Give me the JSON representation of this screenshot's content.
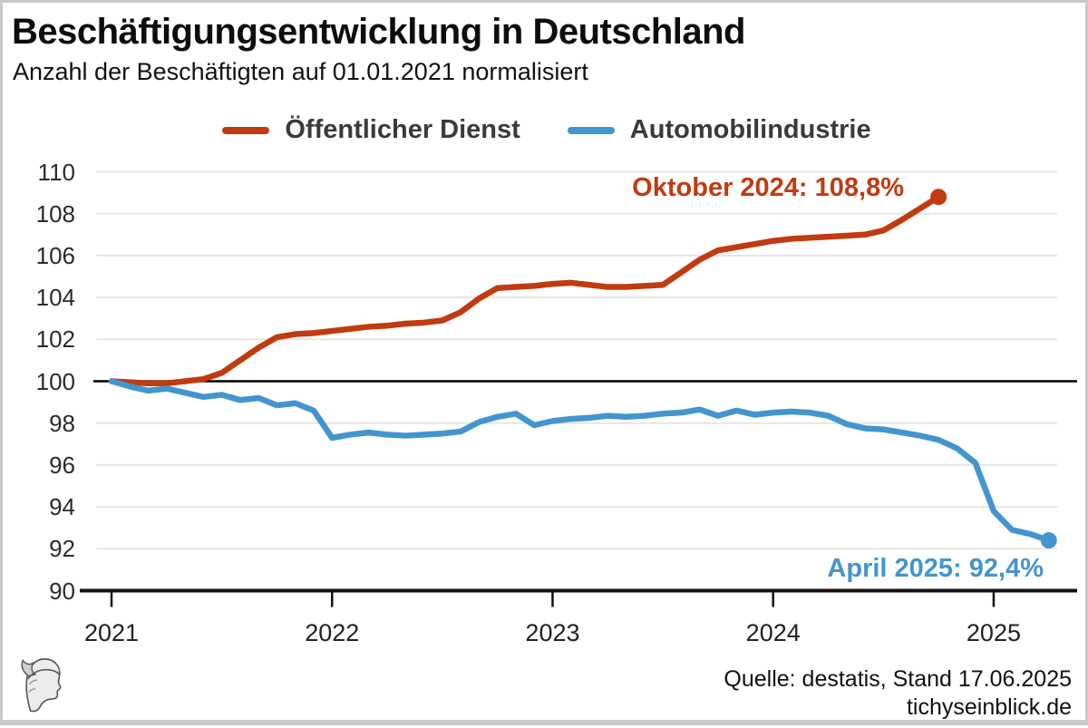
{
  "header": {
    "title": "Beschäftigungsentwicklung in Deutschland",
    "subtitle": "Anzahl der Beschäftigten auf 01.01.2021 normalisiert"
  },
  "legend": {
    "items": [
      {
        "label": "Öffentlicher Dienst",
        "color": "#c23a10"
      },
      {
        "label": "Automobilindustrie",
        "color": "#4295ce"
      }
    ]
  },
  "annotations": {
    "red_label": "Oktober 2024: 108,8%",
    "blue_label": "April 2025: 92,4%"
  },
  "footer": {
    "source_line": "Quelle: destatis, Stand 17.06.2025",
    "site": "tichyseinblick.de",
    "logo": "tichys-einblick-mercury-head"
  },
  "colors": {
    "red": "#c23a10",
    "blue": "#4295ce",
    "grid": "#e5e5e5",
    "baseline": "#000000",
    "axis": "#111111",
    "legend_text": "#3a3a3a",
    "frame_border": "#c9c9c9"
  },
  "chart_data": {
    "type": "line",
    "title": "Beschäftigungsentwicklung in Deutschland",
    "subtitle": "Anzahl der Beschäftigten auf 01.01.2021 normalisiert",
    "x_axis": {
      "start": "2021-01",
      "interval": "monthly",
      "tick_labels": [
        "2021",
        "2022",
        "2023",
        "2024",
        "2025"
      ]
    },
    "y_axis": {
      "min": 90,
      "max": 110,
      "tick_step": 2,
      "tick_labels": [
        110,
        108,
        106,
        104,
        102,
        100,
        98,
        96,
        94,
        92,
        90
      ],
      "baseline_value": 100,
      "grid": true
    },
    "series": [
      {
        "name": "Öffentlicher Dienst",
        "color": "#c23a10",
        "start_month_index": 0,
        "end_point_label": "Oktober 2024: 108,8%",
        "end_value": 108.8,
        "values": [
          100.0,
          99.95,
          99.9,
          99.9,
          100.0,
          100.1,
          100.4,
          101.0,
          101.6,
          102.1,
          102.25,
          102.3,
          102.4,
          102.5,
          102.6,
          102.65,
          102.75,
          102.8,
          102.9,
          103.3,
          103.95,
          104.45,
          104.5,
          104.55,
          104.65,
          104.7,
          104.6,
          104.5,
          104.5,
          104.55,
          104.6,
          105.2,
          105.8,
          106.25,
          106.4,
          106.55,
          106.7,
          106.8,
          106.85,
          106.9,
          106.95,
          107.0,
          107.2,
          107.7,
          108.25,
          108.8
        ]
      },
      {
        "name": "Automobilindustrie",
        "color": "#4295ce",
        "start_month_index": 0,
        "end_point_label": "April 2025: 92,4%",
        "end_value": 92.4,
        "values": [
          100.0,
          99.75,
          99.55,
          99.65,
          99.45,
          99.25,
          99.35,
          99.1,
          99.2,
          98.85,
          98.95,
          98.6,
          97.3,
          97.45,
          97.55,
          97.45,
          97.4,
          97.45,
          97.5,
          97.6,
          98.05,
          98.3,
          98.45,
          97.9,
          98.1,
          98.2,
          98.25,
          98.35,
          98.3,
          98.35,
          98.45,
          98.5,
          98.65,
          98.35,
          98.6,
          98.4,
          98.5,
          98.55,
          98.5,
          98.35,
          97.95,
          97.75,
          97.7,
          97.55,
          97.4,
          97.2,
          96.8,
          96.1,
          93.8,
          92.9,
          92.7,
          92.4
        ]
      }
    ],
    "legend_position": "top-center"
  }
}
